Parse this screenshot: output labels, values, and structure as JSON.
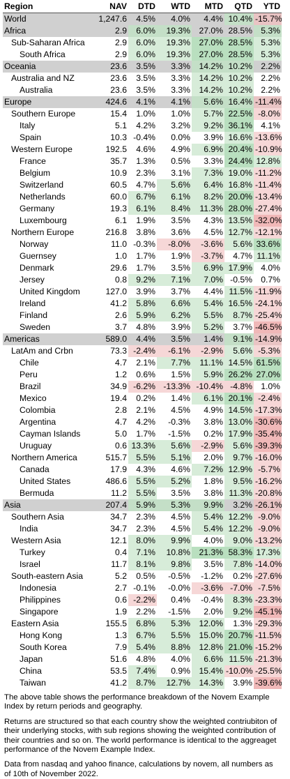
{
  "headers": [
    "Region",
    "NAV",
    "DTD",
    "WTD",
    "MTD",
    "QTD",
    "YTD"
  ],
  "rows": [
    {
      "name": "World",
      "level": 0,
      "nav": "1,247.6",
      "dtd": "4.5%",
      "wtd": "4.0%",
      "mtd": "4.4%",
      "qtd": "10.4%",
      "ytd": "-15.7%"
    },
    {
      "name": "Africa",
      "level": 1,
      "nav": "2.9",
      "dtd": "6.0%",
      "wtd": "19.3%",
      "mtd": "27.0%",
      "qtd": "28.5%",
      "ytd": "5.3%"
    },
    {
      "name": "Sub-Saharan Africa",
      "level": 2,
      "nav": "2.9",
      "dtd": "6.0%",
      "wtd": "19.3%",
      "mtd": "27.0%",
      "qtd": "28.5%",
      "ytd": "5.3%"
    },
    {
      "name": "South Africa",
      "level": 3,
      "nav": "2.9",
      "dtd": "6.0%",
      "wtd": "19.3%",
      "mtd": "27.0%",
      "qtd": "28.5%",
      "ytd": "5.3%"
    },
    {
      "name": "Oceania",
      "level": 1,
      "nav": "23.6",
      "dtd": "3.5%",
      "wtd": "3.3%",
      "mtd": "14.2%",
      "qtd": "10.2%",
      "ytd": "2.2%"
    },
    {
      "name": "Australia and NZ",
      "level": 2,
      "nav": "23.6",
      "dtd": "3.5%",
      "wtd": "3.3%",
      "mtd": "14.2%",
      "qtd": "10.2%",
      "ytd": "2.2%"
    },
    {
      "name": "Australia",
      "level": 3,
      "nav": "23.6",
      "dtd": "3.5%",
      "wtd": "3.3%",
      "mtd": "14.2%",
      "qtd": "10.2%",
      "ytd": "2.2%"
    },
    {
      "name": "Europe",
      "level": 1,
      "nav": "424.6",
      "dtd": "4.1%",
      "wtd": "4.1%",
      "mtd": "5.6%",
      "qtd": "16.4%",
      "ytd": "-11.4%"
    },
    {
      "name": "Southern Europe",
      "level": 2,
      "nav": "15.4",
      "dtd": "1.0%",
      "wtd": "1.0%",
      "mtd": "5.7%",
      "qtd": "22.5%",
      "ytd": "-8.0%"
    },
    {
      "name": "Italy",
      "level": 3,
      "nav": "5.1",
      "dtd": "4.2%",
      "wtd": "3.2%",
      "mtd": "9.2%",
      "qtd": "36.1%",
      "ytd": "4.1%"
    },
    {
      "name": "Spain",
      "level": 3,
      "nav": "10.3",
      "dtd": "-0.4%",
      "wtd": "0.0%",
      "mtd": "3.9%",
      "qtd": "16.6%",
      "ytd": "-13.6%"
    },
    {
      "name": "Western Europe",
      "level": 2,
      "nav": "192.5",
      "dtd": "4.6%",
      "wtd": "4.9%",
      "mtd": "6.9%",
      "qtd": "20.4%",
      "ytd": "-10.9%"
    },
    {
      "name": "France",
      "level": 3,
      "nav": "35.7",
      "dtd": "1.3%",
      "wtd": "0.5%",
      "mtd": "3.3%",
      "qtd": "24.4%",
      "ytd": "12.8%"
    },
    {
      "name": "Belgium",
      "level": 3,
      "nav": "10.9",
      "dtd": "2.3%",
      "wtd": "3.1%",
      "mtd": "7.3%",
      "qtd": "19.0%",
      "ytd": "-11.2%"
    },
    {
      "name": "Switzerland",
      "level": 3,
      "nav": "60.5",
      "dtd": "4.7%",
      "wtd": "5.6%",
      "mtd": "6.4%",
      "qtd": "16.8%",
      "ytd": "-11.4%"
    },
    {
      "name": "Netherlands",
      "level": 3,
      "nav": "60.0",
      "dtd": "6.7%",
      "wtd": "6.1%",
      "mtd": "8.2%",
      "qtd": "20.0%",
      "ytd": "-13.4%"
    },
    {
      "name": "Germany",
      "level": 3,
      "nav": "19.3",
      "dtd": "6.1%",
      "wtd": "8.4%",
      "mtd": "11.3%",
      "qtd": "28.0%",
      "ytd": "-27.4%"
    },
    {
      "name": "Luxembourg",
      "level": 3,
      "nav": "6.1",
      "dtd": "1.9%",
      "wtd": "3.5%",
      "mtd": "4.3%",
      "qtd": "13.5%",
      "ytd": "-32.0%"
    },
    {
      "name": "Northern Europe",
      "level": 2,
      "nav": "216.8",
      "dtd": "3.8%",
      "wtd": "3.6%",
      "mtd": "4.5%",
      "qtd": "12.7%",
      "ytd": "-12.1%"
    },
    {
      "name": "Norway",
      "level": 3,
      "nav": "11.0",
      "dtd": "-0.3%",
      "wtd": "-8.0%",
      "mtd": "-3.6%",
      "qtd": "5.6%",
      "ytd": "33.6%"
    },
    {
      "name": "Guernsey",
      "level": 3,
      "nav": "1.0",
      "dtd": "1.7%",
      "wtd": "1.9%",
      "mtd": "-3.7%",
      "qtd": "4.7%",
      "ytd": "11.1%"
    },
    {
      "name": "Denmark",
      "level": 3,
      "nav": "29.6",
      "dtd": "1.7%",
      "wtd": "3.5%",
      "mtd": "6.9%",
      "qtd": "17.9%",
      "ytd": "4.0%"
    },
    {
      "name": "Jersey",
      "level": 3,
      "nav": "0.8",
      "dtd": "9.2%",
      "wtd": "7.1%",
      "mtd": "7.0%",
      "qtd": "-0.5%",
      "ytd": "0.7%"
    },
    {
      "name": "United Kingdom",
      "level": 3,
      "nav": "127.0",
      "dtd": "3.9%",
      "wtd": "3.7%",
      "mtd": "4.4%",
      "qtd": "11.5%",
      "ytd": "-11.9%"
    },
    {
      "name": "Ireland",
      "level": 3,
      "nav": "41.2",
      "dtd": "5.8%",
      "wtd": "6.6%",
      "mtd": "5.4%",
      "qtd": "16.5%",
      "ytd": "-24.1%"
    },
    {
      "name": "Finland",
      "level": 3,
      "nav": "2.6",
      "dtd": "5.9%",
      "wtd": "6.2%",
      "mtd": "5.5%",
      "qtd": "8.7%",
      "ytd": "-25.4%"
    },
    {
      "name": "Sweden",
      "level": 3,
      "nav": "3.7",
      "dtd": "4.8%",
      "wtd": "3.9%",
      "mtd": "5.2%",
      "qtd": "3.7%",
      "ytd": "-46.5%"
    },
    {
      "name": "Americas",
      "level": 1,
      "nav": "589.0",
      "dtd": "4.4%",
      "wtd": "3.5%",
      "mtd": "1.4%",
      "qtd": "9.1%",
      "ytd": "-14.9%"
    },
    {
      "name": "LatAm and Crbn",
      "level": 2,
      "nav": "73.3",
      "dtd": "-2.4%",
      "wtd": "-6.1%",
      "mtd": "-2.9%",
      "qtd": "5.6%",
      "ytd": "-5.3%"
    },
    {
      "name": "Chile",
      "level": 3,
      "nav": "4.7",
      "dtd": "2.1%",
      "wtd": "7.7%",
      "mtd": "11.1%",
      "qtd": "14.5%",
      "ytd": "61.5%"
    },
    {
      "name": "Peru",
      "level": 3,
      "nav": "1.2",
      "dtd": "0.6%",
      "wtd": "1.5%",
      "mtd": "5.9%",
      "qtd": "26.2%",
      "ytd": "27.0%"
    },
    {
      "name": "Brazil",
      "level": 3,
      "nav": "34.9",
      "dtd": "-6.2%",
      "wtd": "-13.3%",
      "mtd": "-10.4%",
      "qtd": "-4.8%",
      "ytd": "1.0%"
    },
    {
      "name": "Mexico",
      "level": 3,
      "nav": "19.4",
      "dtd": "0.2%",
      "wtd": "1.4%",
      "mtd": "6.1%",
      "qtd": "20.1%",
      "ytd": "-2.4%"
    },
    {
      "name": "Colombia",
      "level": 3,
      "nav": "2.8",
      "dtd": "2.1%",
      "wtd": "4.5%",
      "mtd": "4.9%",
      "qtd": "14.5%",
      "ytd": "-17.3%"
    },
    {
      "name": "Argentina",
      "level": 3,
      "nav": "4.7",
      "dtd": "4.2%",
      "wtd": "-0.3%",
      "mtd": "3.8%",
      "qtd": "13.0%",
      "ytd": "-30.6%"
    },
    {
      "name": "Cayman Islands",
      "level": 3,
      "nav": "5.0",
      "dtd": "1.7%",
      "wtd": "-1.5%",
      "mtd": "0.2%",
      "qtd": "17.9%",
      "ytd": "-35.4%"
    },
    {
      "name": "Uruguay",
      "level": 3,
      "nav": "0.6",
      "dtd": "13.3%",
      "wtd": "5.6%",
      "mtd": "-2.9%",
      "qtd": "5.6%",
      "ytd": "-39.3%"
    },
    {
      "name": "Northern America",
      "level": 2,
      "nav": "515.7",
      "dtd": "5.5%",
      "wtd": "5.1%",
      "mtd": "2.0%",
      "qtd": "9.7%",
      "ytd": "-16.0%"
    },
    {
      "name": "Canada",
      "level": 3,
      "nav": "17.9",
      "dtd": "4.3%",
      "wtd": "4.6%",
      "mtd": "7.2%",
      "qtd": "12.9%",
      "ytd": "-5.7%"
    },
    {
      "name": "United States",
      "level": 3,
      "nav": "486.6",
      "dtd": "5.5%",
      "wtd": "5.2%",
      "mtd": "1.8%",
      "qtd": "9.5%",
      "ytd": "-16.2%"
    },
    {
      "name": "Bermuda",
      "level": 3,
      "nav": "11.2",
      "dtd": "5.5%",
      "wtd": "3.5%",
      "mtd": "3.8%",
      "qtd": "11.3%",
      "ytd": "-20.8%"
    },
    {
      "name": "Asia",
      "level": 1,
      "nav": "207.4",
      "dtd": "5.9%",
      "wtd": "5.3%",
      "mtd": "9.9%",
      "qtd": "3.2%",
      "ytd": "-26.1%"
    },
    {
      "name": "Southern Asia",
      "level": 2,
      "nav": "34.7",
      "dtd": "2.3%",
      "wtd": "4.5%",
      "mtd": "5.4%",
      "qtd": "12.2%",
      "ytd": "-9.0%"
    },
    {
      "name": "India",
      "level": 3,
      "nav": "34.7",
      "dtd": "2.3%",
      "wtd": "4.5%",
      "mtd": "5.4%",
      "qtd": "12.2%",
      "ytd": "-9.0%"
    },
    {
      "name": "Western Asia",
      "level": 2,
      "nav": "12.1",
      "dtd": "8.0%",
      "wtd": "9.9%",
      "mtd": "4.0%",
      "qtd": "9.0%",
      "ytd": "-13.2%"
    },
    {
      "name": "Turkey",
      "level": 3,
      "nav": "0.4",
      "dtd": "7.1%",
      "wtd": "10.8%",
      "mtd": "21.3%",
      "qtd": "58.3%",
      "ytd": "17.3%"
    },
    {
      "name": "Israel",
      "level": 3,
      "nav": "11.7",
      "dtd": "8.1%",
      "wtd": "9.8%",
      "mtd": "3.5%",
      "qtd": "7.8%",
      "ytd": "-14.0%"
    },
    {
      "name": "South-eastern Asia",
      "level": 2,
      "nav": "5.2",
      "dtd": "0.5%",
      "wtd": "-0.5%",
      "mtd": "-1.2%",
      "qtd": "0.2%",
      "ytd": "-27.6%"
    },
    {
      "name": "Indonesia",
      "level": 3,
      "nav": "2.7",
      "dtd": "-0.1%",
      "wtd": "-0.0%",
      "mtd": "-3.6%",
      "qtd": "-7.0%",
      "ytd": "-7.5%"
    },
    {
      "name": "Philippines",
      "level": 3,
      "nav": "0.6",
      "dtd": "-2.2%",
      "wtd": "0.4%",
      "mtd": "-0.4%",
      "qtd": "8.3%",
      "ytd": "-23.3%"
    },
    {
      "name": "Singapore",
      "level": 3,
      "nav": "1.9",
      "dtd": "2.2%",
      "wtd": "-1.5%",
      "mtd": "2.0%",
      "qtd": "9.2%",
      "ytd": "-45.1%"
    },
    {
      "name": "Eastern Asia",
      "level": 2,
      "nav": "155.5",
      "dtd": "6.8%",
      "wtd": "5.3%",
      "mtd": "12.0%",
      "qtd": "1.3%",
      "ytd": "-29.3%"
    },
    {
      "name": "Hong Kong",
      "level": 3,
      "nav": "1.3",
      "dtd": "6.7%",
      "wtd": "5.5%",
      "mtd": "15.0%",
      "qtd": "20.7%",
      "ytd": "-11.5%"
    },
    {
      "name": "South Korea",
      "level": 3,
      "nav": "7.9",
      "dtd": "5.4%",
      "wtd": "8.8%",
      "mtd": "12.8%",
      "qtd": "21.0%",
      "ytd": "-15.2%"
    },
    {
      "name": "Japan",
      "level": 3,
      "nav": "51.6",
      "dtd": "4.8%",
      "wtd": "4.0%",
      "mtd": "6.6%",
      "qtd": "11.5%",
      "ytd": "-21.3%"
    },
    {
      "name": "China",
      "level": 3,
      "nav": "53.5",
      "dtd": "7.4%",
      "wtd": "0.9%",
      "mtd": "15.4%",
      "qtd": "-10.0%",
      "ytd": "-25.5%"
    },
    {
      "name": "Taiwan",
      "level": 3,
      "nav": "41.2",
      "dtd": "8.7%",
      "wtd": "12.7%",
      "mtd": "14.3%",
      "qtd": "3.9%",
      "ytd": "-39.6%"
    }
  ],
  "notes": [
    "The above table shows the performance breakdown of the Novem Example Index by return periods and geography.",
    "Returns are structured so that each country show the weighted contriubiton of their underlying stocks, with sub regions showing the weighted contribution of their countries and so on. The world performance is identical to the aggreaget performance of the Novem Example Index.",
    "Data from nasdaq and yahoo finance, calculations by novem, all numbers as of 10th of November 2022."
  ]
}
